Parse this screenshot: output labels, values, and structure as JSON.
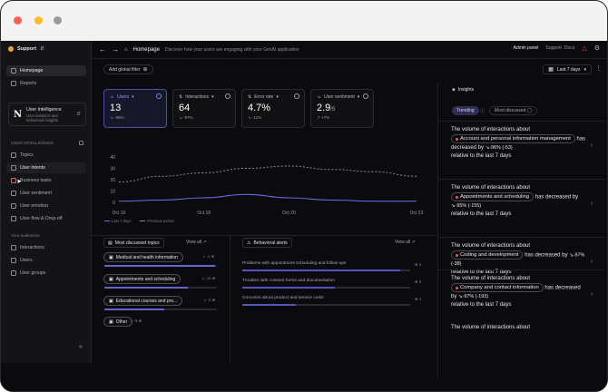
{
  "sidebar": {
    "org": "Support",
    "items_top": [
      "Homepage",
      "Reports"
    ],
    "project": {
      "name": "User Intelligence",
      "subtitle": "User analytics and behavioral insights",
      "logo": "N"
    },
    "section_label": "USER INTELLIGENCE",
    "items_ui": [
      "Topics",
      "User intents",
      "Business tasks",
      "User sentiment",
      "User emotion",
      "User flow & Drop-off"
    ],
    "section2_label": "Your audiences",
    "items_aud": [
      "Interactions",
      "Users",
      "User groups"
    ]
  },
  "header": {
    "breadcrumb": "Homepage",
    "description": "Discover how your users are engaging with your GenAI application",
    "admin": "Admin panel",
    "support": "Support",
    "docs": "Docs"
  },
  "toolbar": {
    "filter": "Add global filter",
    "date": "Last 7 days"
  },
  "metrics": [
    {
      "label": "Users",
      "value": "13",
      "unit": "",
      "delta": "-85%"
    },
    {
      "label": "Interactions",
      "value": "64",
      "unit": "",
      "delta": "-97%"
    },
    {
      "label": "Error rate",
      "value": "4.7%",
      "unit": "",
      "delta": "-11%"
    },
    {
      "label": "User sentiment",
      "value": "2.9",
      "unit": "/5",
      "delta": "+7%"
    }
  ],
  "chart_data": {
    "type": "line",
    "x": [
      "Oct 16",
      "Oct 17",
      "Oct 18",
      "Oct 19",
      "Oct 20",
      "Oct 21",
      "Oct 22",
      "Oct 23"
    ],
    "series": [
      {
        "name": "Last 7 days",
        "values": [
          1,
          2,
          4,
          7,
          4,
          2,
          1,
          1
        ]
      },
      {
        "name": "Previous period",
        "values": [
          18,
          23,
          26,
          30,
          32,
          29,
          27,
          23
        ]
      }
    ],
    "xticks": [
      "Oct 16",
      "Oct 18",
      "Oct 20",
      "Oct 23"
    ],
    "yticks": [
      0,
      10,
      20,
      30,
      40
    ],
    "ylim": [
      0,
      40
    ],
    "grid": false,
    "legend": "bottom-left"
  },
  "topics": {
    "title": "Most discussed topics",
    "view_all": "View all",
    "items": [
      {
        "label": "Medical and health information",
        "meta": "-1",
        "fill": 0.98
      },
      {
        "label": "Appointments and scheduling",
        "meta": "-11",
        "fill": 0.74
      },
      {
        "label": "Educational courses and pro...",
        "meta": "-2",
        "fill": 0.53
      },
      {
        "label": "Other",
        "meta": "-5",
        "fill": 0.36
      }
    ]
  },
  "alerts": {
    "title": "Behavioral alerts",
    "view_all": "View all",
    "items": [
      {
        "text": "Problems with appointment scheduling and follow-ups",
        "count": "2",
        "fill": 0.94
      },
      {
        "text": "Troubles with consent forms and documentation",
        "count": "2",
        "fill": 0.55
      },
      {
        "text": "Concerns about product and service costs",
        "count": "1",
        "fill": 0.32
      }
    ]
  },
  "insights": {
    "title": "Insights",
    "tabs": [
      "Trending",
      "Most discussed"
    ],
    "items": [
      {
        "lead": "The volume of interactions about",
        "topic": "Account and personal information management",
        "mid": "has decreased by",
        "delta": "-96%",
        "count": "(-53)",
        "tail": "relative to the last 7 days"
      },
      {
        "lead": "The volume of interactions about",
        "topic": "Appointments and scheduling",
        "mid": "has decreased by",
        "delta": "-95%",
        "count": "(-155)",
        "tail": "relative to the last 7 days"
      },
      {
        "lead": "The volume of interactions about",
        "topic": "Coding and development",
        "mid": "has decreased by",
        "delta": "-97%",
        "count": "(-38)",
        "tail": "relative to the last 7 days"
      },
      {
        "lead": "The volume of interactions about",
        "topic": "Company and contact information",
        "mid": "has decreased by",
        "delta": "-97%",
        "count": "(-193)",
        "tail": "relative to the last 7 days"
      },
      {
        "lead": "The volume of interactions about",
        "topic": "",
        "mid": "",
        "delta": "",
        "count": "",
        "tail": ""
      }
    ]
  }
}
